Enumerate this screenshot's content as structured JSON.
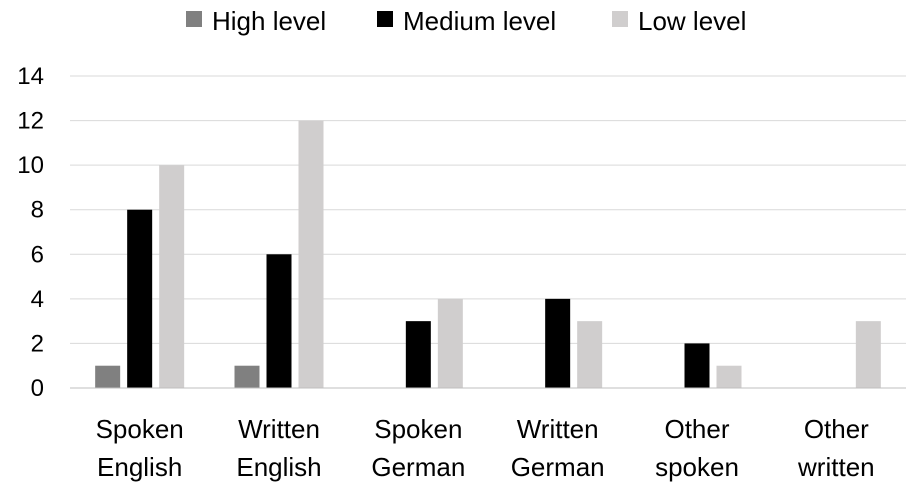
{
  "chart_data": {
    "type": "bar",
    "categories": [
      [
        "Spoken",
        "English"
      ],
      [
        "Written",
        "English"
      ],
      [
        "Spoken",
        "German"
      ],
      [
        "Written",
        "German"
      ],
      [
        "Other",
        "spoken"
      ],
      [
        "Other",
        "written"
      ]
    ],
    "series": [
      {
        "name": "High level",
        "color": "#808080",
        "values": [
          1,
          1,
          0,
          0,
          0,
          0
        ]
      },
      {
        "name": "Medium level",
        "color": "#000000",
        "values": [
          8,
          6,
          3,
          4,
          2,
          0
        ]
      },
      {
        "name": "Low level",
        "color": "#d0cece",
        "values": [
          10,
          12,
          4,
          3,
          1,
          3
        ]
      }
    ],
    "yticks": [
      "0",
      "2",
      "4",
      "6",
      "8",
      "10",
      "12",
      "14"
    ],
    "ylim": [
      0,
      14
    ],
    "grid": true,
    "legend_position": "top"
  }
}
